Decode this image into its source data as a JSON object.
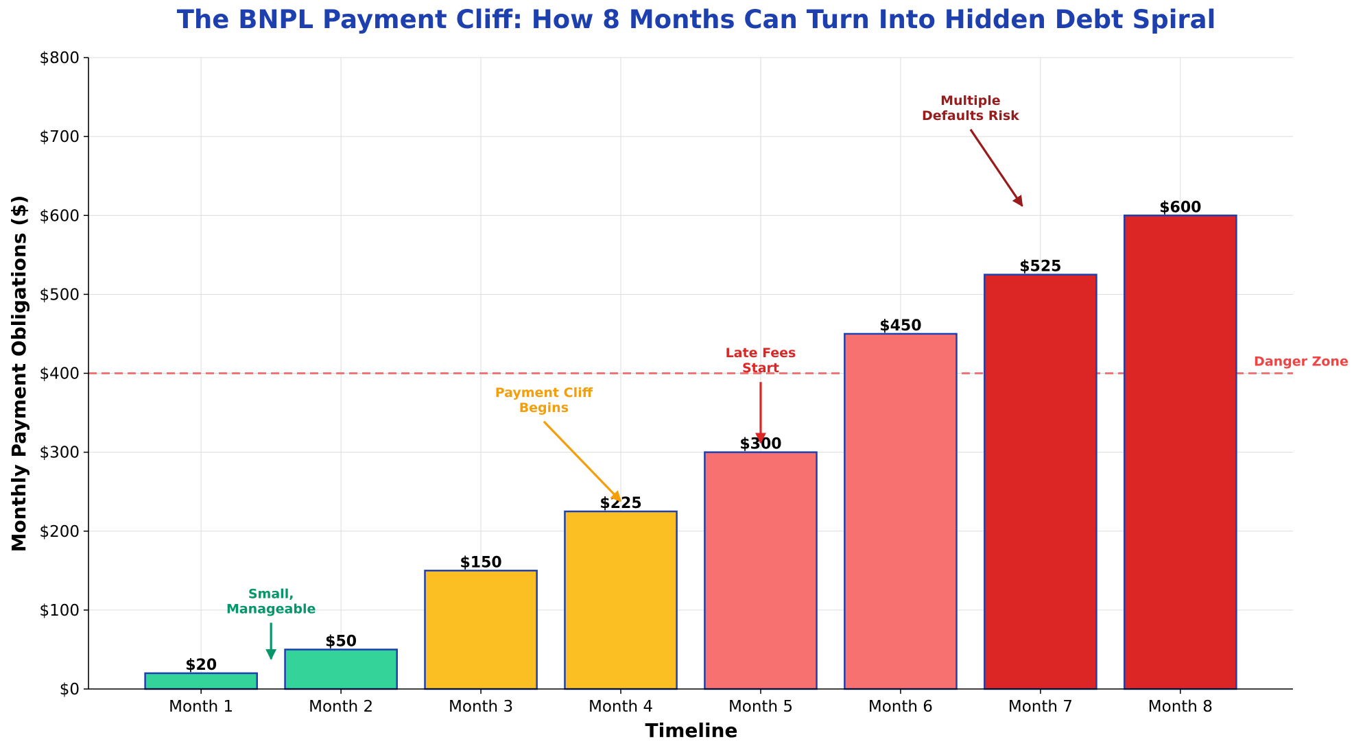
{
  "chart_data": {
    "type": "bar",
    "title": "The BNPL Payment Cliff: How 8 Months Can Turn Into Hidden Debt Spiral",
    "xlabel": "Timeline",
    "ylabel": "Monthly Payment Obligations ($)",
    "categories": [
      "Month 1",
      "Month 2",
      "Month 3",
      "Month 4",
      "Month 5",
      "Month 6",
      "Month 7",
      "Month 8"
    ],
    "values": [
      20,
      50,
      150,
      225,
      300,
      450,
      525,
      600
    ],
    "value_labels": [
      "$20",
      "$50",
      "$150",
      "$225",
      "$300",
      "$450",
      "$525",
      "$600"
    ],
    "bar_colors": [
      "#34d399",
      "#34d399",
      "#fbbf24",
      "#fbbf24",
      "#f87171",
      "#f87171",
      "#dc2626",
      "#dc2626"
    ],
    "bar_edge_color": "#1e40af",
    "ylim": [
      0,
      800
    ],
    "yticks": [
      0,
      100,
      200,
      300,
      400,
      500,
      600,
      700,
      800
    ],
    "ytick_labels": [
      "$0",
      "$100",
      "$200",
      "$300",
      "$400",
      "$500",
      "$600",
      "$700",
      "$800"
    ],
    "grid": true,
    "reference_line": {
      "value": 400,
      "label": "Danger Zone",
      "color": "#ef4444",
      "style": "dashed"
    },
    "annotations": [
      {
        "lines": [
          "Small,",
          "Manageable"
        ],
        "color": "#059669",
        "text_at": [
          0.5,
          110
        ],
        "arrow_to": [
          0.5,
          38
        ]
      },
      {
        "lines": [
          "Payment Cliff",
          "Begins"
        ],
        "color": "#f59e0b",
        "text_at": [
          2.45,
          365
        ],
        "arrow_to": [
          3.0,
          238
        ]
      },
      {
        "lines": [
          "Late Fees",
          "Start"
        ],
        "color": "#dc2626",
        "text_at": [
          4.0,
          415
        ],
        "arrow_to": [
          4.0,
          312
        ]
      },
      {
        "lines": [
          "Multiple",
          "Defaults Risk"
        ],
        "color": "#991b1b",
        "text_at": [
          5.5,
          735
        ],
        "arrow_to": [
          5.87,
          612
        ]
      }
    ]
  }
}
